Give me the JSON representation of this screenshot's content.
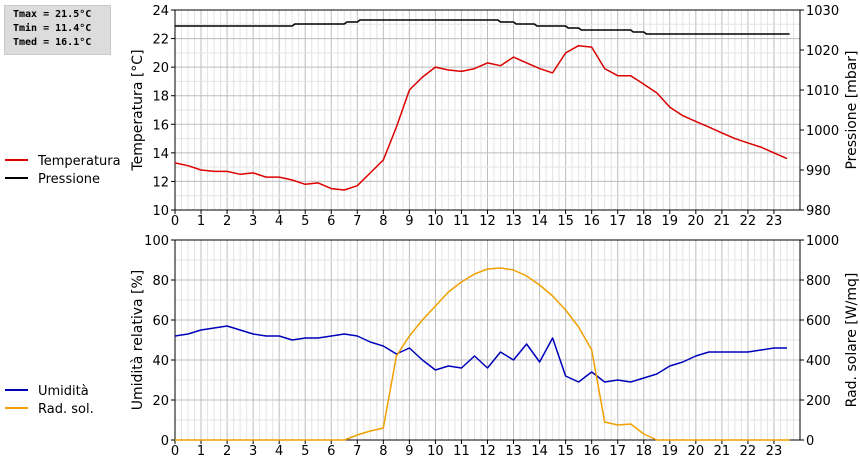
{
  "stats": {
    "tmax": "Tmax = 21.5°C",
    "tmin": "Tmin = 11.4°C",
    "tmed": "Tmed = 16.1°C"
  },
  "chart_data": [
    {
      "type": "line",
      "xticks": [
        0,
        1,
        2,
        3,
        4,
        5,
        6,
        7,
        8,
        9,
        10,
        11,
        12,
        13,
        14,
        15,
        16,
        17,
        18,
        19,
        20,
        21,
        22,
        23
      ],
      "xlim": [
        0,
        24
      ],
      "ylabel_left": "Temperatura [°C]",
      "ylabel_right": "Pressione [mbar]",
      "ylim_left": [
        10,
        24
      ],
      "ylim_right": [
        980,
        1030
      ],
      "yticks_left": [
        10,
        12,
        14,
        16,
        18,
        20,
        22,
        24
      ],
      "yticks_right": [
        980,
        990,
        1000,
        1010,
        1020,
        1030
      ],
      "grid": true,
      "legend_position": "left",
      "series": [
        {
          "name": "Temperatura",
          "axis": "left",
          "color": "#dd0000",
          "x": [
            0,
            0.5,
            1,
            1.5,
            2,
            2.5,
            3,
            3.5,
            4,
            4.5,
            5,
            5.5,
            6,
            6.5,
            7,
            7.5,
            8,
            8.5,
            9,
            9.5,
            10,
            10.5,
            11,
            11.5,
            12,
            12.5,
            13,
            13.5,
            14,
            14.5,
            15,
            15.5,
            16,
            16.5,
            17,
            17.5,
            18,
            18.5,
            19,
            19.5,
            20,
            20.5,
            21,
            21.5,
            22,
            22.5,
            23,
            23.5
          ],
          "values": [
            13.3,
            13.1,
            12.8,
            12.7,
            12.7,
            12.5,
            12.6,
            12.3,
            12.3,
            12.1,
            11.8,
            11.9,
            11.5,
            11.4,
            11.7,
            12.6,
            13.5,
            15.8,
            18.4,
            19.3,
            20.0,
            19.8,
            19.7,
            19.9,
            20.3,
            20.1,
            20.7,
            20.3,
            19.9,
            19.6,
            21.0,
            21.5,
            21.4,
            19.9,
            19.4,
            19.4,
            18.8,
            18.2,
            17.2,
            16.6,
            16.2,
            15.8,
            15.4,
            15.0,
            14.7,
            14.4,
            14.0,
            13.6
          ]
        },
        {
          "name": "Pressione",
          "axis": "right",
          "color": "#000000",
          "x": [
            0,
            4.5,
            4.6,
            6.5,
            6.6,
            7,
            7.1,
            12.4,
            12.5,
            13,
            13.1,
            13.8,
            13.9,
            15,
            15.1,
            15.5,
            15.6,
            17.5,
            17.6,
            18,
            18.1,
            23.6
          ],
          "values": [
            1026,
            1026,
            1026.5,
            1026.5,
            1027,
            1027,
            1027.5,
            1027.5,
            1027,
            1027,
            1026.5,
            1026.5,
            1026,
            1026,
            1025.5,
            1025.5,
            1025,
            1025,
            1024.5,
            1024.5,
            1024,
            1024
          ]
        }
      ]
    },
    {
      "type": "line",
      "xticks": [
        0,
        1,
        2,
        3,
        4,
        5,
        6,
        7,
        8,
        9,
        10,
        11,
        12,
        13,
        14,
        15,
        16,
        17,
        18,
        19,
        20,
        21,
        22,
        23
      ],
      "xlim": [
        0,
        24
      ],
      "ylabel_left": "Umidità relativa [%]",
      "ylabel_right": "Rad. solare [W/mq]",
      "ylim_left": [
        0,
        100
      ],
      "ylim_right": [
        0,
        1000
      ],
      "yticks_left": [
        0,
        20,
        40,
        60,
        80,
        100
      ],
      "yticks_right": [
        0,
        200,
        400,
        600,
        800,
        1000
      ],
      "grid": true,
      "legend_position": "left",
      "series": [
        {
          "name": "Umidità",
          "axis": "left",
          "color": "#0000bb",
          "x": [
            0,
            0.5,
            1,
            1.5,
            2,
            2.5,
            3,
            3.5,
            4,
            4.5,
            5,
            5.5,
            6,
            6.5,
            7,
            7.5,
            8,
            8.5,
            9,
            9.5,
            10,
            10.5,
            11,
            11.5,
            12,
            12.5,
            13,
            13.5,
            14,
            14.5,
            15,
            15.5,
            16,
            16.5,
            17,
            17.5,
            18,
            18.5,
            19,
            19.5,
            20,
            20.5,
            21,
            21.5,
            22,
            22.5,
            23,
            23.5
          ],
          "values": [
            52,
            53,
            55,
            56,
            57,
            55,
            53,
            52,
            52,
            50,
            51,
            51,
            52,
            53,
            52,
            49,
            47,
            43,
            46,
            40,
            35,
            37,
            36,
            42,
            36,
            44,
            40,
            48,
            39,
            51,
            32,
            29,
            34,
            29,
            30,
            29,
            31,
            33,
            37,
            39,
            42,
            44,
            44,
            44,
            44,
            45,
            46,
            46
          ]
        },
        {
          "name": "Rad. sol.",
          "axis": "right",
          "color": "#f0a000",
          "x": [
            0,
            6.5,
            7,
            7.5,
            8,
            8.5,
            9,
            9.5,
            10,
            10.5,
            11,
            11.5,
            12,
            12.5,
            13,
            13.5,
            14,
            14.5,
            15,
            15.5,
            16,
            16.5,
            17,
            17.5,
            18,
            18.5,
            19,
            23.6
          ],
          "values": [
            0,
            0,
            25,
            45,
            60,
            420,
            520,
            600,
            670,
            740,
            790,
            830,
            855,
            860,
            850,
            820,
            775,
            720,
            650,
            565,
            450,
            90,
            75,
            80,
            30,
            0,
            0,
            0
          ]
        }
      ]
    }
  ]
}
